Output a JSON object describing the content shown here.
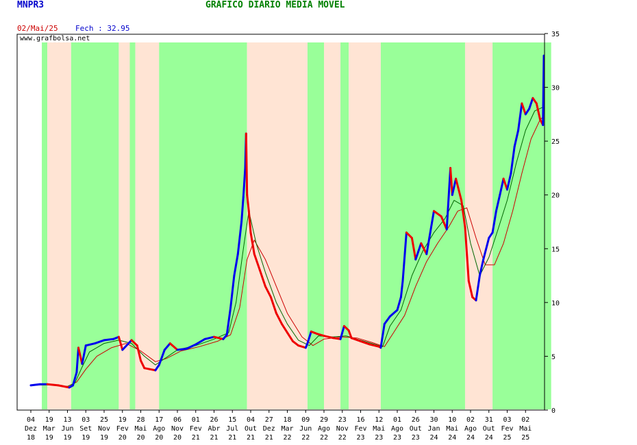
{
  "header": {
    "ticker": "MNPR3",
    "title": "GRÁFICO DIÁRIO MÉDIA MÓVEL",
    "date": "02/Mai/25",
    "close_label": "Fech : 32.95",
    "watermark": "www.grafbolsa.net"
  },
  "colors": {
    "price_up": "#0000ee",
    "price_down": "#ee0000",
    "ma_short": "#006600",
    "ma_long": "#cc0000",
    "band_green": "#99ff99",
    "band_peach": "#ffe4d4"
  },
  "chart_data": {
    "type": "line",
    "y_axis": {
      "range": [
        0,
        35
      ],
      "ticks": [
        0,
        5,
        10,
        15,
        20,
        25,
        30,
        35
      ],
      "position": "right"
    },
    "x_ticks": [
      {
        "day": "04",
        "mon": "Dez",
        "yr": "18"
      },
      {
        "day": "19",
        "mon": "Mar",
        "yr": "19"
      },
      {
        "day": "13",
        "mon": "Jun",
        "yr": "19"
      },
      {
        "day": "03",
        "mon": "Set",
        "yr": "19"
      },
      {
        "day": "25",
        "mon": "Nov",
        "yr": "19"
      },
      {
        "day": "19",
        "mon": "Fev",
        "yr": "20"
      },
      {
        "day": "28",
        "mon": "Mai",
        "yr": "20"
      },
      {
        "day": "17",
        "mon": "Ago",
        "yr": "20"
      },
      {
        "day": "06",
        "mon": "Nov",
        "yr": "20"
      },
      {
        "day": "01",
        "mon": "Fev",
        "yr": "21"
      },
      {
        "day": "26",
        "mon": "Abr",
        "yr": "21"
      },
      {
        "day": "15",
        "mon": "Jul",
        "yr": "21"
      },
      {
        "day": "04",
        "mon": "Out",
        "yr": "21"
      },
      {
        "day": "27",
        "mon": "Dez",
        "yr": "21"
      },
      {
        "day": "18",
        "mon": "Mar",
        "yr": "22"
      },
      {
        "day": "09",
        "mon": "Jun",
        "yr": "22"
      },
      {
        "day": "29",
        "mon": "Ago",
        "yr": "22"
      },
      {
        "day": "23",
        "mon": "Nov",
        "yr": "22"
      },
      {
        "day": "16",
        "mon": "Fev",
        "yr": "23"
      },
      {
        "day": "12",
        "mon": "Mai",
        "yr": "23"
      },
      {
        "day": "01",
        "mon": "Ago",
        "yr": "23"
      },
      {
        "day": "26",
        "mon": "Out",
        "yr": "23"
      },
      {
        "day": "30",
        "mon": "Jan",
        "yr": "24"
      },
      {
        "day": "10",
        "mon": "Mai",
        "yr": "24"
      },
      {
        "day": "02",
        "mon": "Ago",
        "yr": "24"
      },
      {
        "day": "31",
        "mon": "Out",
        "yr": "24"
      },
      {
        "day": "03",
        "mon": "Fev",
        "yr": "25"
      },
      {
        "day": "02",
        "mon": "Mai",
        "yr": "25"
      }
    ],
    "bands": [
      {
        "from": 0.6,
        "to": 0.9,
        "trend": "up"
      },
      {
        "from": 0.9,
        "to": 2.2,
        "trend": "down"
      },
      {
        "from": 2.2,
        "to": 4.8,
        "trend": "up"
      },
      {
        "from": 4.8,
        "to": 5.4,
        "trend": "down"
      },
      {
        "from": 5.4,
        "to": 5.7,
        "trend": "up"
      },
      {
        "from": 5.7,
        "to": 7.0,
        "trend": "down"
      },
      {
        "from": 7.0,
        "to": 11.8,
        "trend": "up"
      },
      {
        "from": 11.8,
        "to": 15.1,
        "trend": "down"
      },
      {
        "from": 15.1,
        "to": 16.0,
        "trend": "up"
      },
      {
        "from": 16.0,
        "to": 16.9,
        "trend": "down"
      },
      {
        "from": 16.9,
        "to": 17.35,
        "trend": "up"
      },
      {
        "from": 17.35,
        "to": 19.1,
        "trend": "down"
      },
      {
        "from": 19.1,
        "to": 23.7,
        "trend": "up"
      },
      {
        "from": 23.7,
        "to": 25.2,
        "trend": "down"
      },
      {
        "from": 25.2,
        "to": 28.4,
        "trend": "up"
      }
    ],
    "price": [
      [
        0,
        2.3
      ],
      [
        0.5,
        2.4
      ],
      [
        0.9,
        2.4
      ],
      [
        1.5,
        2.3
      ],
      [
        2.1,
        2.1
      ],
      [
        2.3,
        2.3
      ],
      [
        2.5,
        3.5
      ],
      [
        2.6,
        5.8
      ],
      [
        2.8,
        4.3
      ],
      [
        3.0,
        6.0
      ],
      [
        3.5,
        6.2
      ],
      [
        4.0,
        6.5
      ],
      [
        4.5,
        6.6
      ],
      [
        4.8,
        6.8
      ],
      [
        5.0,
        5.6
      ],
      [
        5.5,
        6.5
      ],
      [
        5.8,
        6.0
      ],
      [
        6.0,
        4.6
      ],
      [
        6.2,
        3.9
      ],
      [
        6.5,
        3.8
      ],
      [
        6.8,
        3.7
      ],
      [
        7.0,
        4.2
      ],
      [
        7.3,
        5.6
      ],
      [
        7.6,
        6.2
      ],
      [
        8.0,
        5.6
      ],
      [
        8.5,
        5.7
      ],
      [
        9.0,
        6.1
      ],
      [
        9.5,
        6.6
      ],
      [
        10.0,
        6.8
      ],
      [
        10.5,
        6.6
      ],
      [
        10.7,
        7.0
      ],
      [
        10.9,
        9.5
      ],
      [
        11.1,
        12.5
      ],
      [
        11.3,
        14.5
      ],
      [
        11.5,
        17.5
      ],
      [
        11.6,
        19.8
      ],
      [
        11.7,
        22.5
      ],
      [
        11.75,
        25.7
      ],
      [
        11.8,
        20.0
      ],
      [
        11.9,
        18.5
      ],
      [
        12.0,
        16.5
      ],
      [
        12.2,
        14.5
      ],
      [
        12.5,
        13.0
      ],
      [
        12.8,
        11.5
      ],
      [
        13.1,
        10.5
      ],
      [
        13.4,
        9.0
      ],
      [
        13.7,
        8.0
      ],
      [
        14.0,
        7.2
      ],
      [
        14.3,
        6.4
      ],
      [
        14.6,
        6.0
      ],
      [
        15.0,
        5.8
      ],
      [
        15.1,
        6.2
      ],
      [
        15.3,
        7.3
      ],
      [
        15.6,
        7.1
      ],
      [
        16.0,
        6.9
      ],
      [
        16.5,
        6.7
      ],
      [
        16.9,
        6.6
      ],
      [
        17.1,
        7.8
      ],
      [
        17.35,
        7.4
      ],
      [
        17.5,
        6.7
      ],
      [
        18.0,
        6.4
      ],
      [
        18.5,
        6.1
      ],
      [
        19.0,
        5.9
      ],
      [
        19.1,
        5.8
      ],
      [
        19.3,
        8.0
      ],
      [
        19.6,
        8.7
      ],
      [
        20.0,
        9.3
      ],
      [
        20.2,
        10.5
      ],
      [
        20.3,
        12.0
      ],
      [
        20.5,
        16.5
      ],
      [
        20.8,
        16.0
      ],
      [
        21.0,
        14.0
      ],
      [
        21.3,
        15.5
      ],
      [
        21.6,
        14.5
      ],
      [
        22.0,
        18.5
      ],
      [
        22.4,
        18.0
      ],
      [
        22.7,
        16.8
      ],
      [
        22.9,
        22.5
      ],
      [
        23.0,
        20.0
      ],
      [
        23.2,
        21.5
      ],
      [
        23.5,
        19.5
      ],
      [
        23.7,
        17.0
      ],
      [
        23.9,
        12.0
      ],
      [
        24.1,
        10.5
      ],
      [
        24.3,
        10.2
      ],
      [
        24.5,
        12.5
      ],
      [
        24.7,
        14.0
      ],
      [
        25.0,
        16.0
      ],
      [
        25.2,
        16.5
      ],
      [
        25.4,
        18.5
      ],
      [
        25.6,
        20.0
      ],
      [
        25.8,
        21.5
      ],
      [
        26.0,
        20.5
      ],
      [
        26.2,
        22.0
      ],
      [
        26.4,
        24.5
      ],
      [
        26.6,
        26.0
      ],
      [
        26.8,
        28.5
      ],
      [
        27.0,
        27.5
      ],
      [
        27.2,
        28.0
      ],
      [
        27.4,
        29.0
      ],
      [
        27.6,
        28.5
      ],
      [
        27.8,
        27.0
      ],
      [
        27.95,
        26.5
      ],
      [
        28.0,
        32.95
      ]
    ],
    "ma_short": [
      [
        0,
        2.3
      ],
      [
        1.0,
        2.35
      ],
      [
        2.0,
        2.2
      ],
      [
        2.4,
        2.5
      ],
      [
        2.8,
        4.0
      ],
      [
        3.2,
        5.4
      ],
      [
        4.0,
        6.2
      ],
      [
        4.8,
        6.5
      ],
      [
        5.5,
        6.2
      ],
      [
        6.2,
        5.0
      ],
      [
        6.8,
        4.2
      ],
      [
        7.4,
        4.9
      ],
      [
        8.0,
        5.6
      ],
      [
        9.0,
        6.0
      ],
      [
        10.0,
        6.6
      ],
      [
        10.8,
        7.2
      ],
      [
        11.2,
        10.0
      ],
      [
        11.6,
        15.0
      ],
      [
        11.9,
        18.5
      ],
      [
        12.3,
        15.5
      ],
      [
        12.8,
        12.8
      ],
      [
        13.4,
        10.0
      ],
      [
        14.0,
        8.0
      ],
      [
        14.6,
        6.5
      ],
      [
        15.2,
        6.0
      ],
      [
        15.7,
        6.9
      ],
      [
        16.5,
        6.8
      ],
      [
        17.2,
        6.9
      ],
      [
        17.8,
        6.6
      ],
      [
        18.6,
        6.2
      ],
      [
        19.2,
        5.9
      ],
      [
        19.6,
        7.8
      ],
      [
        20.2,
        9.3
      ],
      [
        20.8,
        12.5
      ],
      [
        21.4,
        14.8
      ],
      [
        22.0,
        16.5
      ],
      [
        22.6,
        17.8
      ],
      [
        23.1,
        19.5
      ],
      [
        23.6,
        19.0
      ],
      [
        24.0,
        15.5
      ],
      [
        24.5,
        12.5
      ],
      [
        25.0,
        14.2
      ],
      [
        25.5,
        16.8
      ],
      [
        26.0,
        19.5
      ],
      [
        26.5,
        23.0
      ],
      [
        27.0,
        26.0
      ],
      [
        27.5,
        27.8
      ],
      [
        28.0,
        28.2
      ]
    ],
    "ma_long": [
      [
        0,
        2.3
      ],
      [
        1.0,
        2.35
      ],
      [
        2.0,
        2.2
      ],
      [
        2.5,
        2.6
      ],
      [
        3.0,
        3.8
      ],
      [
        3.6,
        5.0
      ],
      [
        4.4,
        5.8
      ],
      [
        5.2,
        6.2
      ],
      [
        6.0,
        5.5
      ],
      [
        6.8,
        4.5
      ],
      [
        7.4,
        4.8
      ],
      [
        8.2,
        5.5
      ],
      [
        9.2,
        5.9
      ],
      [
        10.2,
        6.4
      ],
      [
        10.9,
        7.0
      ],
      [
        11.4,
        9.5
      ],
      [
        11.8,
        14.0
      ],
      [
        12.2,
        15.8
      ],
      [
        12.8,
        14.0
      ],
      [
        13.4,
        11.5
      ],
      [
        14.0,
        9.0
      ],
      [
        14.8,
        6.8
      ],
      [
        15.4,
        6.0
      ],
      [
        16.0,
        6.6
      ],
      [
        17.0,
        6.8
      ],
      [
        17.8,
        6.7
      ],
      [
        18.6,
        6.3
      ],
      [
        19.3,
        5.9
      ],
      [
        19.8,
        7.2
      ],
      [
        20.4,
        8.8
      ],
      [
        21.0,
        11.5
      ],
      [
        21.6,
        13.8
      ],
      [
        22.2,
        15.5
      ],
      [
        22.8,
        17.0
      ],
      [
        23.3,
        18.5
      ],
      [
        23.8,
        18.8
      ],
      [
        24.3,
        16.0
      ],
      [
        24.8,
        13.5
      ],
      [
        25.3,
        13.5
      ],
      [
        25.8,
        15.5
      ],
      [
        26.3,
        18.5
      ],
      [
        26.8,
        22.0
      ],
      [
        27.3,
        25.2
      ],
      [
        27.8,
        27.0
      ],
      [
        28.0,
        27.3
      ]
    ]
  }
}
